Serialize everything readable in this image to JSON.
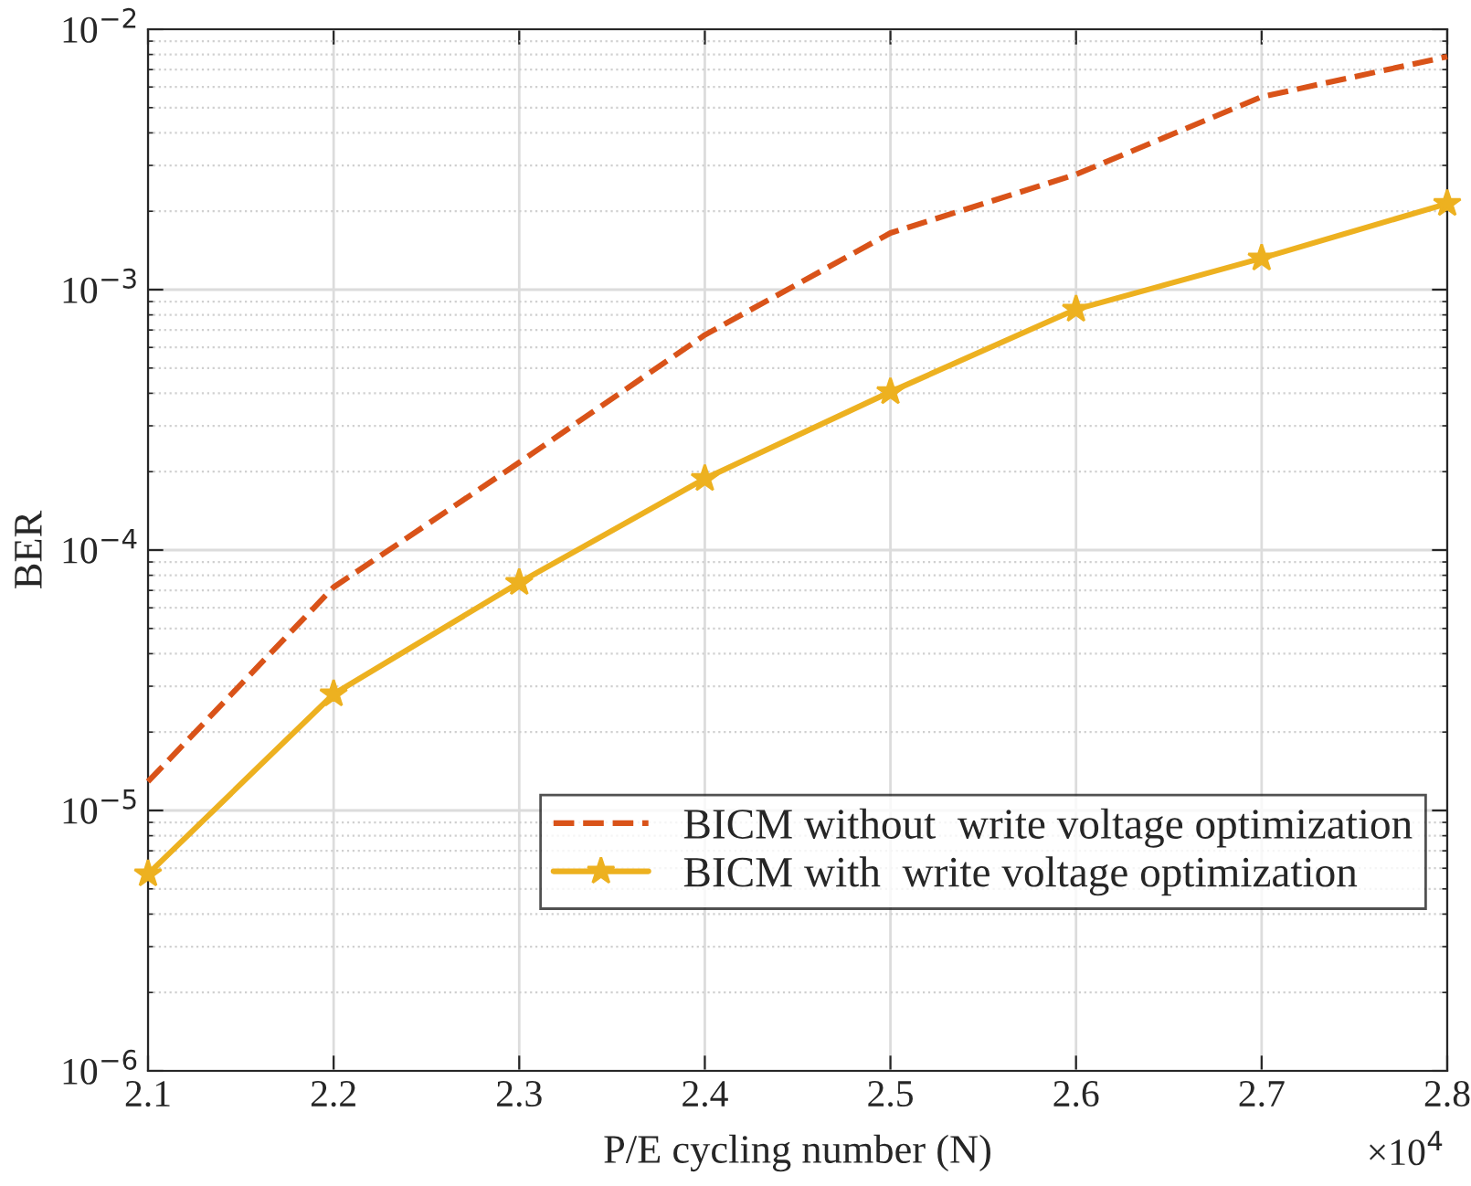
{
  "chart_data": {
    "type": "line",
    "xlabel": "P/E cycling number (N)",
    "ylabel": "BER",
    "x": [
      2.1,
      2.2,
      2.3,
      2.4,
      2.5,
      2.6,
      2.7,
      2.8
    ],
    "series": [
      {
        "name": "BICM without  write voltage optimization",
        "color": "#d95319",
        "line_style": "dashed",
        "marker": "none",
        "values": [
          1.29e-05,
          7.2e-05,
          0.000217,
          0.00067,
          0.00165,
          0.00277,
          0.0055,
          0.00785
        ]
      },
      {
        "name": "BICM with  write voltage optimization",
        "color": "#edb120",
        "line_style": "solid",
        "marker": "star",
        "values": [
          5.7e-06,
          2.8e-05,
          7.5e-05,
          0.000188,
          0.000405,
          0.00084,
          0.00132,
          0.00214
        ]
      }
    ],
    "log": "y",
    "xlim": [
      2.1,
      2.8
    ],
    "xticks": [
      2.1,
      2.2,
      2.3,
      2.4,
      2.5,
      2.6,
      2.7,
      2.8
    ],
    "ylim": [
      1e-06,
      0.01
    ],
    "yticks": [
      {
        "value": 1e-06,
        "label": "10$^{−6}$"
      },
      {
        "value": 1e-05,
        "label": "10$^{−5}$"
      },
      {
        "value": 0.0001,
        "label": "10$^{−4}$"
      },
      {
        "value": 0.001,
        "label": "10$^{−3}$"
      },
      {
        "value": 0.01,
        "label": "10$^{−2}$"
      }
    ],
    "annotations": [
      "×10$^{4}$"
    ],
    "grid": true,
    "legend": "bottom right"
  }
}
